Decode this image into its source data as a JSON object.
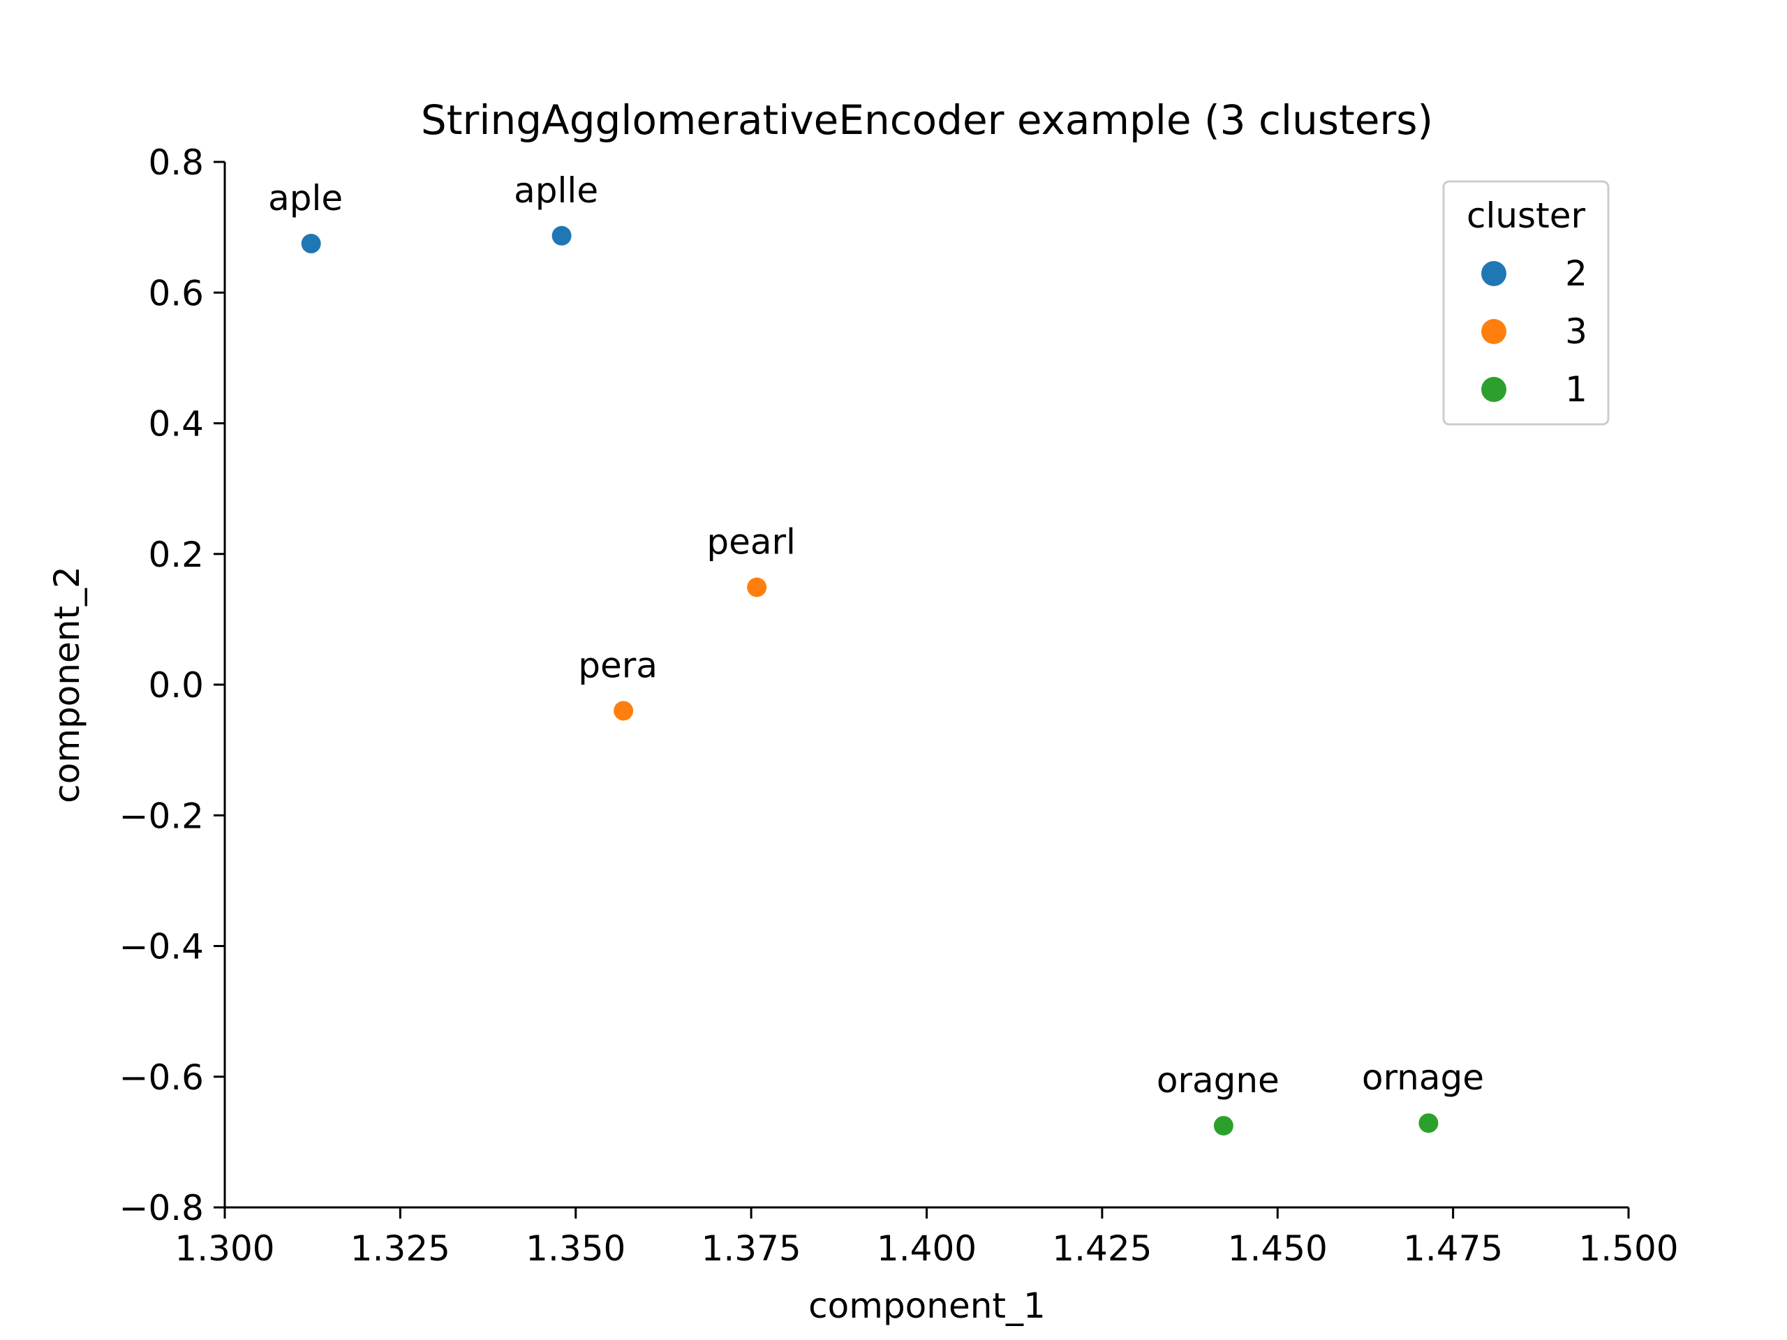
{
  "chart_data": {
    "type": "scatter",
    "title": "StringAgglomerativeEncoder example (3 clusters)",
    "xlabel": "component_1",
    "ylabel": "component_2",
    "xlim": [
      1.3,
      1.5
    ],
    "ylim": [
      -0.8,
      0.8
    ],
    "xticks": [
      "1.300",
      "1.325",
      "1.350",
      "1.375",
      "1.400",
      "1.425",
      "1.450",
      "1.475",
      "1.500"
    ],
    "yticks": [
      "0.8",
      "0.6",
      "0.4",
      "0.2",
      "0.0",
      "−0.2",
      "−0.4",
      "−0.6",
      "−0.8"
    ],
    "xtick_values": [
      1.3,
      1.325,
      1.35,
      1.375,
      1.4,
      1.425,
      1.45,
      1.475,
      1.5
    ],
    "ytick_values": [
      0.8,
      0.6,
      0.4,
      0.2,
      0.0,
      -0.2,
      -0.4,
      -0.6,
      -0.8
    ],
    "grid": false,
    "legend": {
      "title": "cluster",
      "placement": "top-right",
      "entries": [
        {
          "label": "2",
          "color": "#1f77b4"
        },
        {
          "label": "3",
          "color": "#ff7f0e"
        },
        {
          "label": "1",
          "color": "#2ca02c"
        }
      ]
    },
    "points": [
      {
        "label": "aple",
        "x": 1.3123,
        "y": 0.675,
        "cluster": "2",
        "color": "#1f77b4"
      },
      {
        "label": "aplle",
        "x": 1.348,
        "y": 0.687,
        "cluster": "2",
        "color": "#1f77b4"
      },
      {
        "label": "pearl",
        "x": 1.3758,
        "y": 0.149,
        "cluster": "3",
        "color": "#ff7f0e"
      },
      {
        "label": "pera",
        "x": 1.3568,
        "y": -0.04,
        "cluster": "3",
        "color": "#ff7f0e"
      },
      {
        "label": "oragne",
        "x": 1.4423,
        "y": -0.675,
        "cluster": "1",
        "color": "#2ca02c"
      },
      {
        "label": "ornage",
        "x": 1.4715,
        "y": -0.671,
        "cluster": "1",
        "color": "#2ca02c"
      }
    ]
  }
}
